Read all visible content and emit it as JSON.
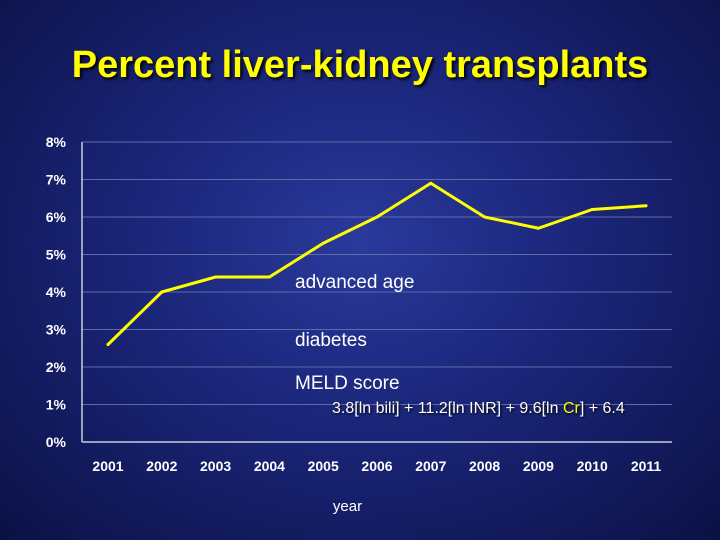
{
  "chart_data": {
    "type": "line",
    "title": "Percent liver-kidney transplants",
    "xlabel": "year",
    "ylabel": "",
    "categories": [
      "2001",
      "2002",
      "2003",
      "2004",
      "2005",
      "2006",
      "2007",
      "2008",
      "2009",
      "2010",
      "2011"
    ],
    "series": [
      {
        "values": [
          2.6,
          4.0,
          4.4,
          4.4,
          5.3,
          6.0,
          6.9,
          6.0,
          5.7,
          6.2,
          6.3
        ]
      }
    ],
    "ylim": [
      0,
      8
    ],
    "yticks": [
      "0%",
      "1%",
      "2%",
      "3%",
      "4%",
      "5%",
      "6%",
      "7%",
      "8%"
    ],
    "grid": true,
    "line_color": "#ffff00",
    "annotations": [
      "advanced age",
      "diabetes",
      "MELD score"
    ],
    "formula": {
      "prefix": "3.8[ln bili] + 11.2[ln INR] + 9.6[ln ",
      "highlight": "Cr",
      "suffix": "] + 6.4"
    }
  }
}
